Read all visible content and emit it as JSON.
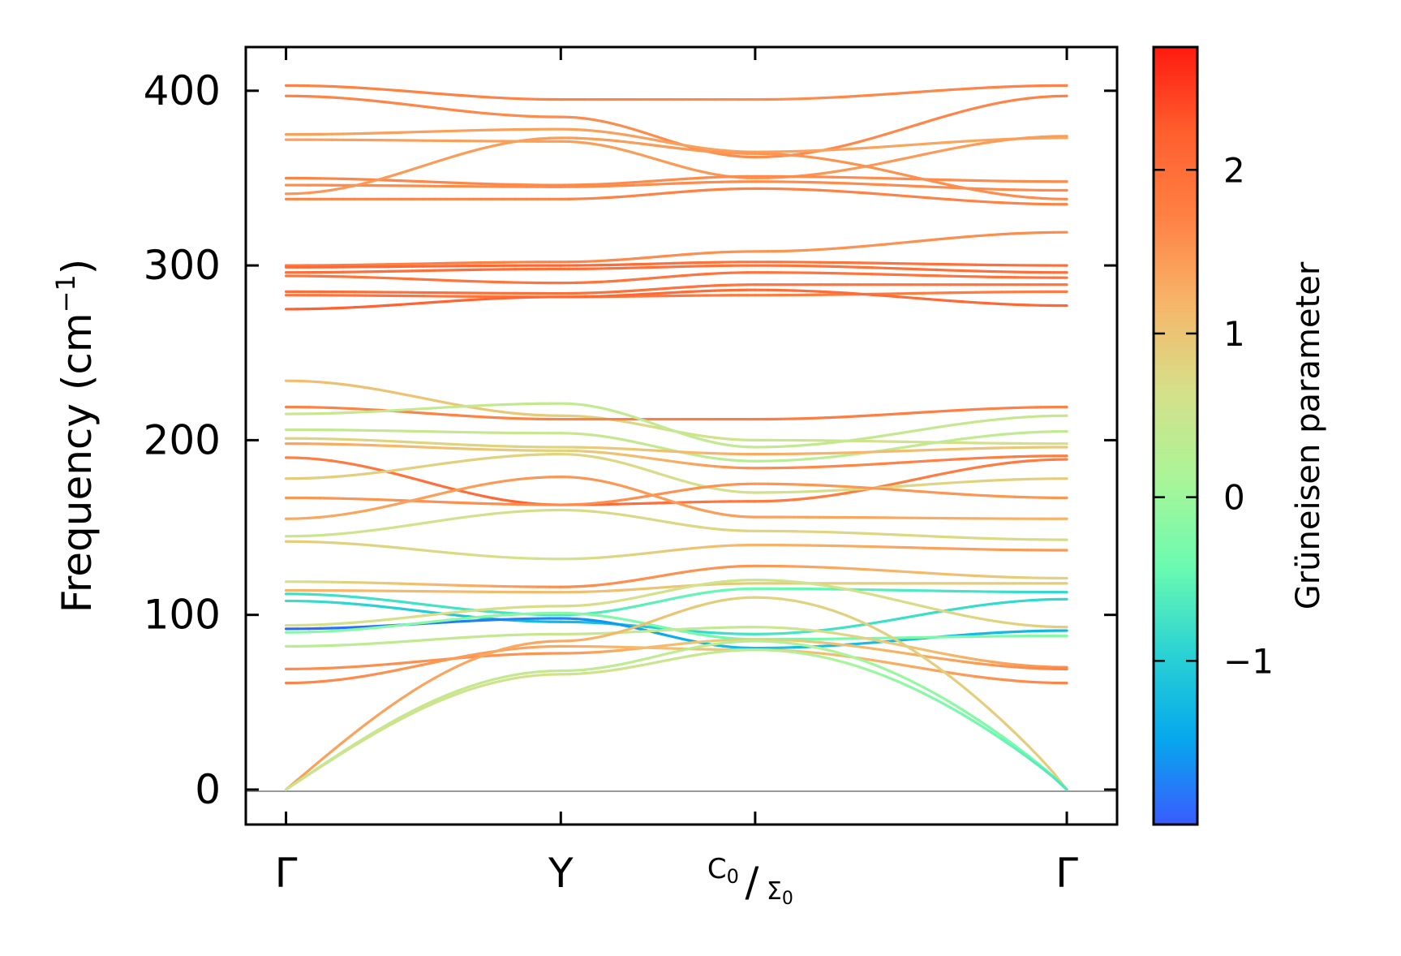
{
  "chart_data": {
    "type": "line",
    "title": "",
    "xlabel": "",
    "ylabel": "Frequency (cm",
    "ylabel_sup": "−1",
    "ylabel_close": ")",
    "ylim": [
      -20,
      425
    ],
    "yticks": [
      0,
      100,
      200,
      300,
      400
    ],
    "ytick_labels": [
      "0",
      "100",
      "200",
      "300",
      "400"
    ],
    "xlim": [
      -0.12,
      2.48
    ],
    "xticks": [
      {
        "pos": 0.0,
        "label": "Γ"
      },
      {
        "pos": 0.82,
        "label": "Y"
      },
      {
        "pos": 1.4,
        "label": "C0/Σ0",
        "top": "C",
        "top_sub": "0",
        "bottom": "Σ",
        "bottom_sub": "0"
      },
      {
        "pos": 2.33,
        "label": "Γ"
      }
    ],
    "colorbar": {
      "label": "Grüneisen parameter",
      "range": [
        -2.0,
        2.75
      ],
      "ticks": [
        2,
        1,
        0,
        -1
      ],
      "tick_labels": [
        "2",
        "1",
        "0",
        "−1"
      ],
      "colormap": [
        "#3a5bff",
        "#06a8ec",
        "#2bd3d3",
        "#6cfbb0",
        "#aaf598",
        "#d5e08a",
        "#f6b76a",
        "#ff8245",
        "#ff5f2e",
        "#ff1a10"
      ]
    },
    "series": [
      {
        "name": "band-1",
        "x": [
          0,
          0.82,
          1.4,
          2.33
        ],
        "y": [
          403,
          395,
          395,
          403
        ],
        "g": [
          1.7,
          1.7,
          1.6,
          1.7
        ]
      },
      {
        "name": "band-2",
        "x": [
          0,
          0.82,
          1.4,
          2.33
        ],
        "y": [
          397,
          385,
          362,
          397
        ],
        "g": [
          1.7,
          1.6,
          1.6,
          1.7
        ]
      },
      {
        "name": "band-3",
        "x": [
          0,
          0.82,
          1.4,
          2.33
        ],
        "y": [
          375,
          378,
          365,
          373
        ],
        "g": [
          1.4,
          1.4,
          1.4,
          1.3
        ]
      },
      {
        "name": "band-4",
        "x": [
          0,
          0.82,
          1.4,
          2.33
        ],
        "y": [
          372,
          371,
          350,
          374
        ],
        "g": [
          1.4,
          1.4,
          1.5,
          1.4
        ]
      },
      {
        "name": "band-5",
        "x": [
          0,
          0.82,
          1.4,
          2.33
        ],
        "y": [
          350,
          346,
          351,
          348
        ],
        "g": [
          1.7,
          1.6,
          1.6,
          1.6
        ]
      },
      {
        "name": "band-6",
        "x": [
          0,
          0.82,
          1.4,
          2.33
        ],
        "y": [
          346,
          345,
          348,
          343
        ],
        "g": [
          1.6,
          1.6,
          1.6,
          1.6
        ]
      },
      {
        "name": "band-7",
        "x": [
          0,
          0.82,
          1.4,
          2.33
        ],
        "y": [
          341,
          373,
          364,
          338
        ],
        "g": [
          1.5,
          1.4,
          1.5,
          1.6
        ]
      },
      {
        "name": "band-8",
        "x": [
          0,
          0.82,
          1.4,
          2.33
        ],
        "y": [
          338,
          338,
          344,
          335
        ],
        "g": [
          1.7,
          1.7,
          1.7,
          1.7
        ]
      },
      {
        "name": "band-9",
        "x": [
          0,
          0.82,
          1.4,
          2.33
        ],
        "y": [
          300,
          302,
          308,
          319
        ],
        "g": [
          1.8,
          1.7,
          1.5,
          1.6
        ]
      },
      {
        "name": "band-10",
        "x": [
          0,
          0.82,
          1.4,
          2.33
        ],
        "y": [
          299,
          300,
          302,
          300
        ],
        "g": [
          2.1,
          2.1,
          1.9,
          2.0
        ]
      },
      {
        "name": "band-11",
        "x": [
          0,
          0.82,
          1.4,
          2.33
        ],
        "y": [
          296,
          298,
          300,
          296
        ],
        "g": [
          2.0,
          2.0,
          1.9,
          2.0
        ]
      },
      {
        "name": "band-12",
        "x": [
          0,
          0.82,
          1.4,
          2.33
        ],
        "y": [
          294,
          290,
          296,
          293
        ],
        "g": [
          1.9,
          1.9,
          1.9,
          1.9
        ]
      },
      {
        "name": "band-13",
        "x": [
          0,
          0.82,
          1.4,
          2.33
        ],
        "y": [
          285,
          284,
          289,
          289
        ],
        "g": [
          2.0,
          2.0,
          1.9,
          1.9
        ]
      },
      {
        "name": "band-14",
        "x": [
          0,
          0.82,
          1.4,
          2.33
        ],
        "y": [
          283,
          282,
          283,
          285
        ],
        "g": [
          1.9,
          1.9,
          1.8,
          1.8
        ]
      },
      {
        "name": "band-15",
        "x": [
          0,
          0.82,
          1.4,
          2.33
        ],
        "y": [
          275,
          282,
          286,
          277
        ],
        "g": [
          2.2,
          2.1,
          2.0,
          2.1
        ]
      },
      {
        "name": "band-16",
        "x": [
          0,
          0.82,
          1.4,
          2.33
        ],
        "y": [
          234,
          214,
          200,
          198
        ],
        "g": [
          1.1,
          0.9,
          0.5,
          0.7
        ]
      },
      {
        "name": "band-17",
        "x": [
          0,
          0.82,
          1.4,
          2.33
        ],
        "y": [
          219,
          212,
          212,
          219
        ],
        "g": [
          1.7,
          1.7,
          1.8,
          1.7
        ]
      },
      {
        "name": "band-18",
        "x": [
          0,
          0.82,
          1.4,
          2.33
        ],
        "y": [
          215,
          221,
          196,
          214
        ],
        "g": [
          0.5,
          0.4,
          0.4,
          0.5
        ]
      },
      {
        "name": "band-19",
        "x": [
          0,
          0.82,
          1.4,
          2.33
        ],
        "y": [
          206,
          204,
          188,
          205
        ],
        "g": [
          0.4,
          0.5,
          0.3,
          0.4
        ]
      },
      {
        "name": "band-20",
        "x": [
          0,
          0.82,
          1.4,
          2.33
        ],
        "y": [
          201,
          196,
          192,
          196
        ],
        "g": [
          0.8,
          0.8,
          1.3,
          0.9
        ]
      },
      {
        "name": "band-21",
        "x": [
          0,
          0.82,
          1.4,
          2.33
        ],
        "y": [
          198,
          194,
          184,
          191
        ],
        "g": [
          1.4,
          0.8,
          1.6,
          1.8
        ]
      },
      {
        "name": "band-22",
        "x": [
          0,
          0.82,
          1.4,
          2.33
        ],
        "y": [
          190,
          163,
          165,
          189
        ],
        "g": [
          1.7,
          2.2,
          1.8,
          1.8
        ]
      },
      {
        "name": "band-23",
        "x": [
          0,
          0.82,
          1.4,
          2.33
        ],
        "y": [
          178,
          192,
          170,
          178
        ],
        "g": [
          0.9,
          0.8,
          0.6,
          0.9
        ]
      },
      {
        "name": "band-24",
        "x": [
          0,
          0.82,
          1.4,
          2.33
        ],
        "y": [
          167,
          163,
          175,
          167
        ],
        "g": [
          1.5,
          1.6,
          1.5,
          1.5
        ]
      },
      {
        "name": "band-25",
        "x": [
          0,
          0.82,
          1.4,
          2.33
        ],
        "y": [
          155,
          179,
          156,
          155
        ],
        "g": [
          1.3,
          1.5,
          1.4,
          1.2
        ]
      },
      {
        "name": "band-26",
        "x": [
          0,
          0.82,
          1.4,
          2.33
        ],
        "y": [
          145,
          160,
          148,
          143
        ],
        "g": [
          0.5,
          0.7,
          0.8,
          0.7
        ]
      },
      {
        "name": "band-27",
        "x": [
          0,
          0.82,
          1.4,
          2.33
        ],
        "y": [
          142,
          132,
          140,
          137
        ],
        "g": [
          0.9,
          0.6,
          1.2,
          1.5
        ]
      },
      {
        "name": "band-28",
        "x": [
          0,
          0.82,
          1.4,
          2.33
        ],
        "y": [
          119,
          116,
          128,
          121
        ],
        "g": [
          0.6,
          1.6,
          1.5,
          0.8
        ]
      },
      {
        "name": "band-29",
        "x": [
          0,
          0.82,
          1.4,
          2.33
        ],
        "y": [
          114,
          113,
          118,
          118
        ],
        "g": [
          1.2,
          1.1,
          0.9,
          0.9
        ]
      },
      {
        "name": "band-30",
        "x": [
          0,
          0.82,
          1.4,
          2.33
        ],
        "y": [
          112,
          100,
          115,
          113
        ],
        "g": [
          -0.8,
          -0.7,
          -0.4,
          -0.9
        ]
      },
      {
        "name": "band-31",
        "x": [
          0,
          0.82,
          1.4,
          2.33
        ],
        "y": [
          108,
          96,
          89,
          109
        ],
        "g": [
          -0.8,
          -1.3,
          -0.7,
          -0.9
        ]
      },
      {
        "name": "band-32",
        "x": [
          0,
          0.82,
          1.4,
          2.33
        ],
        "y": [
          94,
          105,
          120,
          93
        ],
        "g": [
          0.6,
          0.7,
          0.5,
          0.9
        ]
      },
      {
        "name": "band-33",
        "x": [
          0,
          0.82,
          1.4,
          2.33
        ],
        "y": [
          92,
          98,
          81,
          91
        ],
        "g": [
          -1.9,
          -1.7,
          -1.2,
          -1.3
        ]
      },
      {
        "name": "band-34",
        "x": [
          0,
          0.82,
          1.4,
          2.33
        ],
        "y": [
          90,
          101,
          86,
          88
        ],
        "g": [
          -0.2,
          -0.2,
          -0.4,
          -0.2
        ]
      },
      {
        "name": "band-35",
        "x": [
          0,
          0.82,
          1.4,
          2.33
        ],
        "y": [
          82,
          89,
          93,
          70
        ],
        "g": [
          0.3,
          0.5,
          0.4,
          1.6
        ]
      },
      {
        "name": "band-36",
        "x": [
          0,
          0.82,
          1.4,
          2.33
        ],
        "y": [
          69,
          78,
          86,
          69
        ],
        "g": [
          1.6,
          1.5,
          0.8,
          1.7
        ]
      },
      {
        "name": "band-37",
        "x": [
          0,
          0.82,
          1.4,
          2.33
        ],
        "y": [
          61,
          82,
          80,
          61
        ],
        "g": [
          1.7,
          1.3,
          0.9,
          1.7
        ]
      },
      {
        "name": "acoustic-1",
        "x": [
          0,
          0.82,
          1.4,
          2.33
        ],
        "y": [
          0,
          85,
          110,
          0
        ],
        "g": [
          1.4,
          1.3,
          0.8,
          0.9
        ]
      },
      {
        "name": "acoustic-2",
        "x": [
          0,
          0.82,
          1.4,
          2.33
        ],
        "y": [
          0,
          68,
          85,
          0
        ],
        "g": [
          0.5,
          0.4,
          0.3,
          -0.4
        ]
      },
      {
        "name": "acoustic-3",
        "x": [
          0,
          0.82,
          1.4,
          2.33
        ],
        "y": [
          0,
          66,
          80,
          0
        ],
        "g": [
          0.5,
          0.6,
          0.4,
          -0.7
        ]
      }
    ]
  }
}
